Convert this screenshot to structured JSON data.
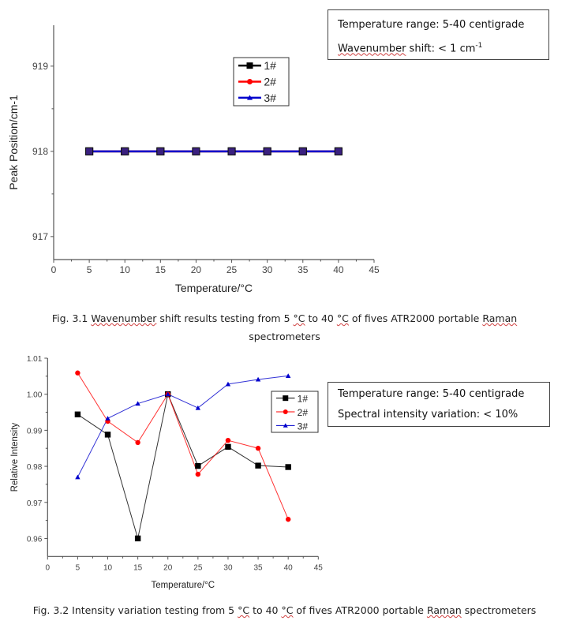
{
  "chart_data": [
    {
      "type": "line",
      "xlabel": "Temperature/°C",
      "ylabel": "Peak Position/cm-1",
      "xlim": [
        0,
        45
      ],
      "ylim": [
        916.73,
        919.48
      ],
      "xticks": [
        0,
        5,
        10,
        15,
        20,
        25,
        30,
        35,
        40,
        45
      ],
      "yticks": [
        917,
        918,
        919
      ],
      "grid": false,
      "legend": "top-center",
      "x": [
        5,
        10,
        15,
        20,
        25,
        30,
        35,
        40
      ],
      "series": [
        {
          "name": "1#",
          "color": "#000000",
          "marker": "square",
          "values": [
            918,
            918,
            918,
            918,
            918,
            918,
            918,
            918
          ]
        },
        {
          "name": "2#",
          "color": "#ff0000",
          "marker": "circle",
          "values": [
            918,
            918,
            918,
            918,
            918,
            918,
            918,
            918
          ]
        },
        {
          "name": "3#",
          "color": "#0000cc",
          "marker": "triangle",
          "values": [
            918,
            918,
            918,
            918,
            918,
            918,
            918,
            918
          ]
        }
      ],
      "note": [
        "Temperature range: 5-40 centigrade",
        "Wavenumber",
        " shift: < 1 cm",
        "-1"
      ],
      "caption": {
        "pre": "Fig. 3.1 ",
        "w1": "Wavenumber",
        "mid": " shift results testing from 5 ",
        "c1": "°C",
        "mid2": " to 40 ",
        "c2": "°C",
        "mid3": " of fives ATR2000 portable ",
        "w2": "Raman",
        "line2": "spectrometers"
      }
    },
    {
      "type": "line",
      "xlabel": "Temperature/°C",
      "ylabel": "Relative Intensity",
      "xlim": [
        0,
        45
      ],
      "ylim": [
        0.955,
        1.01
      ],
      "xticks": [
        0,
        5,
        10,
        15,
        20,
        25,
        30,
        35,
        40,
        45
      ],
      "yticks": [
        0.96,
        0.97,
        0.98,
        0.99,
        1.0,
        1.01
      ],
      "ytick_labels": [
        "0.96",
        "0.97",
        "0.98",
        "0.99",
        "1.00",
        "1.01"
      ],
      "grid": false,
      "legend": "top-right",
      "x": [
        5,
        10,
        15,
        20,
        25,
        30,
        35,
        40
      ],
      "series": [
        {
          "name": "1#",
          "color": "#000000",
          "marker": "square",
          "values": [
            0.9944,
            0.9888,
            0.96,
            1.0,
            0.9801,
            0.9854,
            0.9802,
            0.9798
          ]
        },
        {
          "name": "2#",
          "color": "#ff0000",
          "marker": "circle",
          "values": [
            1.0059,
            0.9925,
            0.9866,
            1.0,
            0.9778,
            0.9872,
            0.985,
            0.9653
          ]
        },
        {
          "name": "3#",
          "color": "#0000cc",
          "marker": "triangle",
          "values": [
            0.977,
            0.9933,
            0.9974,
            1.0,
            0.9962,
            1.0028,
            1.0041,
            1.0051
          ]
        }
      ],
      "note": [
        "Temperature range: 5-40 centigrade",
        "Spectral intensity variation: < 10%"
      ],
      "caption": {
        "pre": "Fig. 3.2 Intensity variation testing from 5 ",
        "c1": "°C",
        "mid2": " to 40 ",
        "c2": "°C",
        "mid3": " of fives ATR2000 portable ",
        "w2": "Raman",
        "post": " spectrometers"
      }
    }
  ]
}
